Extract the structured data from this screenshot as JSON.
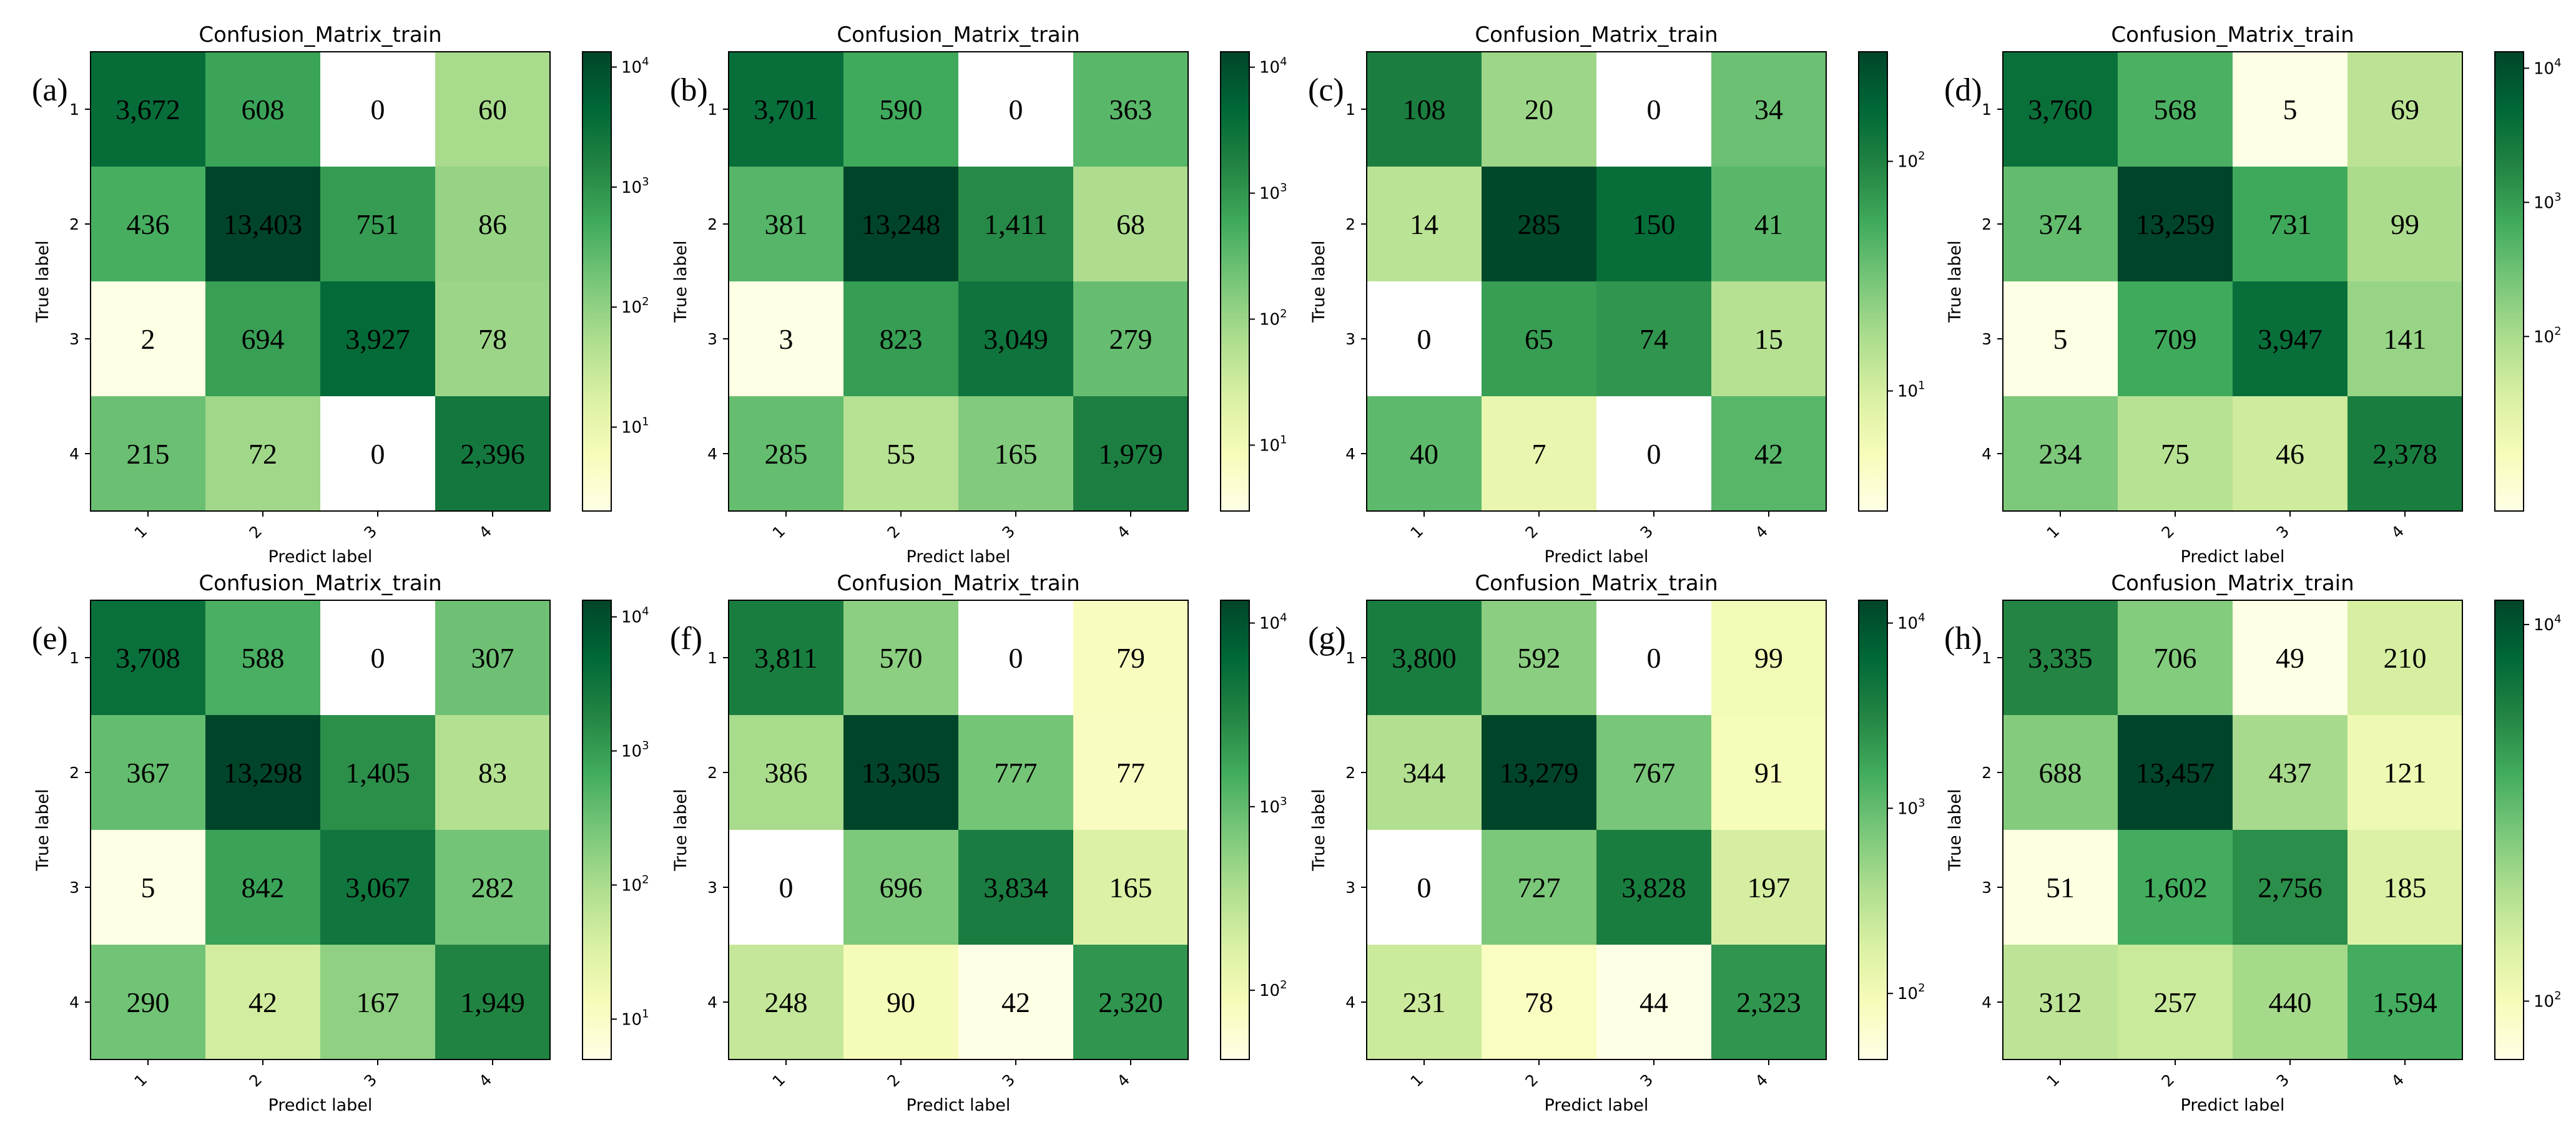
{
  "figure": {
    "colormap_light": "#ffffe5",
    "colormap_dark": "#004529"
  },
  "chart_data": [
    {
      "panel_label": "(a)",
      "type": "heatmap",
      "title": "Confusion_Matrix_train",
      "xlabel": "Predict label",
      "ylabel": "True label",
      "x_categories": [
        "1",
        "2",
        "3",
        "4"
      ],
      "y_categories": [
        "1",
        "2",
        "3",
        "4"
      ],
      "values": [
        [
          3672,
          608,
          0,
          60
        ],
        [
          436,
          13403,
          751,
          86
        ],
        [
          2,
          694,
          3927,
          78
        ],
        [
          215,
          72,
          0,
          2396
        ]
      ],
      "value_labels": [
        [
          "3,672",
          "608",
          "0",
          "60"
        ],
        [
          "436",
          "13,403",
          "751",
          "86"
        ],
        [
          "2",
          "694",
          "3,927",
          "78"
        ],
        [
          "215",
          "72",
          "0",
          "2,396"
        ]
      ],
      "color_scale": "log",
      "color_range": [
        2,
        13403
      ],
      "colorbar_ticks": [
        10,
        100,
        1000,
        10000
      ],
      "colorbar_tick_labels": [
        {
          "base": "10",
          "exp": "1"
        },
        {
          "base": "10",
          "exp": "2"
        },
        {
          "base": "10",
          "exp": "3"
        },
        {
          "base": "10",
          "exp": "4"
        }
      ]
    },
    {
      "panel_label": "(b)",
      "type": "heatmap",
      "title": "Confusion_Matrix_train",
      "xlabel": "Predict label",
      "ylabel": "True label",
      "x_categories": [
        "1",
        "2",
        "3",
        "4"
      ],
      "y_categories": [
        "1",
        "2",
        "3",
        "4"
      ],
      "values": [
        [
          3701,
          590,
          0,
          363
        ],
        [
          381,
          13248,
          1411,
          68
        ],
        [
          3,
          823,
          3049,
          279
        ],
        [
          285,
          55,
          165,
          1979
        ]
      ],
      "value_labels": [
        [
          "3,701",
          "590",
          "0",
          "363"
        ],
        [
          "381",
          "13,248",
          "1,411",
          "68"
        ],
        [
          "3",
          "823",
          "3,049",
          "279"
        ],
        [
          "285",
          "55",
          "165",
          "1,979"
        ]
      ],
      "color_scale": "log",
      "color_range": [
        3,
        13248
      ],
      "colorbar_ticks": [
        10,
        100,
        1000,
        10000
      ],
      "colorbar_tick_labels": [
        {
          "base": "10",
          "exp": "1"
        },
        {
          "base": "10",
          "exp": "2"
        },
        {
          "base": "10",
          "exp": "3"
        },
        {
          "base": "10",
          "exp": "4"
        }
      ]
    },
    {
      "panel_label": "(c)",
      "type": "heatmap",
      "title": "Confusion_Matrix_train",
      "xlabel": "Predict label",
      "ylabel": "True label",
      "x_categories": [
        "1",
        "2",
        "3",
        "4"
      ],
      "y_categories": [
        "1",
        "2",
        "3",
        "4"
      ],
      "values": [
        [
          108,
          20,
          0,
          34
        ],
        [
          14,
          285,
          150,
          41
        ],
        [
          0,
          65,
          74,
          15
        ],
        [
          40,
          7,
          0,
          42
        ]
      ],
      "value_labels": [
        [
          "108",
          "20",
          "0",
          "34"
        ],
        [
          "14",
          "285",
          "150",
          "41"
        ],
        [
          "0",
          "65",
          "74",
          "15"
        ],
        [
          "40",
          "7",
          "0",
          "42"
        ]
      ],
      "color_scale": "log",
      "color_range": [
        3,
        300
      ],
      "colorbar_ticks": [
        10,
        100
      ],
      "colorbar_tick_labels": [
        {
          "base": "10",
          "exp": "1"
        },
        {
          "base": "10",
          "exp": "2"
        }
      ]
    },
    {
      "panel_label": "(d)",
      "type": "heatmap",
      "title": "Confusion_Matrix_train",
      "xlabel": "Predict label",
      "ylabel": "True label",
      "x_categories": [
        "1",
        "2",
        "3",
        "4"
      ],
      "y_categories": [
        "1",
        "2",
        "3",
        "4"
      ],
      "values": [
        [
          3760,
          568,
          5,
          69
        ],
        [
          374,
          13259,
          731,
          99
        ],
        [
          5,
          709,
          3947,
          141
        ],
        [
          234,
          75,
          46,
          2378
        ]
      ],
      "value_labels": [
        [
          "3,760",
          "568",
          "5",
          "69"
        ],
        [
          "374",
          "13,259",
          "731",
          "99"
        ],
        [
          "5",
          "709",
          "3,947",
          "141"
        ],
        [
          "234",
          "75",
          "46",
          "2,378"
        ]
      ],
      "color_scale": "log",
      "color_range": [
        5,
        13259
      ],
      "colorbar_ticks": [
        100,
        1000,
        10000
      ],
      "colorbar_tick_labels": [
        {
          "base": "10",
          "exp": "2"
        },
        {
          "base": "10",
          "exp": "3"
        },
        {
          "base": "10",
          "exp": "4"
        }
      ]
    },
    {
      "panel_label": "(e)",
      "type": "heatmap",
      "title": "Confusion_Matrix_train",
      "xlabel": "Predict label",
      "ylabel": "True label",
      "x_categories": [
        "1",
        "2",
        "3",
        "4"
      ],
      "y_categories": [
        "1",
        "2",
        "3",
        "4"
      ],
      "values": [
        [
          3708,
          588,
          0,
          307
        ],
        [
          367,
          13298,
          1405,
          83
        ],
        [
          5,
          842,
          3067,
          282
        ],
        [
          290,
          42,
          167,
          1949
        ]
      ],
      "value_labels": [
        [
          "3,708",
          "588",
          "0",
          "307"
        ],
        [
          "367",
          "13,298",
          "1,405",
          "83"
        ],
        [
          "5",
          "842",
          "3,067",
          "282"
        ],
        [
          "290",
          "42",
          "167",
          "1,949"
        ]
      ],
      "color_scale": "log",
      "color_range": [
        5,
        13298
      ],
      "colorbar_ticks": [
        10,
        100,
        1000,
        10000
      ],
      "colorbar_tick_labels": [
        {
          "base": "10",
          "exp": "1"
        },
        {
          "base": "10",
          "exp": "2"
        },
        {
          "base": "10",
          "exp": "3"
        },
        {
          "base": "10",
          "exp": "4"
        }
      ]
    },
    {
      "panel_label": "(f)",
      "type": "heatmap",
      "title": "Confusion_Matrix_train",
      "xlabel": "Predict label",
      "ylabel": "True label",
      "x_categories": [
        "1",
        "2",
        "3",
        "4"
      ],
      "y_categories": [
        "1",
        "2",
        "3",
        "4"
      ],
      "values": [
        [
          3811,
          570,
          0,
          79
        ],
        [
          386,
          13305,
          777,
          77
        ],
        [
          0,
          696,
          3834,
          165
        ],
        [
          248,
          90,
          42,
          2320
        ]
      ],
      "value_labels": [
        [
          "3,811",
          "570",
          "0",
          "79"
        ],
        [
          "386",
          "13,305",
          "777",
          "77"
        ],
        [
          "0",
          "696",
          "3,834",
          "165"
        ],
        [
          "248",
          "90",
          "42",
          "2,320"
        ]
      ],
      "color_scale": "log",
      "color_range": [
        42,
        13305
      ],
      "colorbar_ticks": [
        100,
        1000,
        10000
      ],
      "colorbar_tick_labels": [
        {
          "base": "10",
          "exp": "2"
        },
        {
          "base": "10",
          "exp": "3"
        },
        {
          "base": "10",
          "exp": "4"
        }
      ]
    },
    {
      "panel_label": "(g)",
      "type": "heatmap",
      "title": "Confusion_Matrix_train",
      "xlabel": "Predict label",
      "ylabel": "True label",
      "x_categories": [
        "1",
        "2",
        "3",
        "4"
      ],
      "y_categories": [
        "1",
        "2",
        "3",
        "4"
      ],
      "values": [
        [
          3800,
          592,
          0,
          99
        ],
        [
          344,
          13279,
          767,
          91
        ],
        [
          0,
          727,
          3828,
          197
        ],
        [
          231,
          78,
          44,
          2323
        ]
      ],
      "value_labels": [
        [
          "3,800",
          "592",
          "0",
          "99"
        ],
        [
          "344",
          "13,279",
          "767",
          "91"
        ],
        [
          "0",
          "727",
          "3,828",
          "197"
        ],
        [
          "231",
          "78",
          "44",
          "2,323"
        ]
      ],
      "color_scale": "log",
      "color_range": [
        44,
        13279
      ],
      "colorbar_ticks": [
        100,
        1000,
        10000
      ],
      "colorbar_tick_labels": [
        {
          "base": "10",
          "exp": "2"
        },
        {
          "base": "10",
          "exp": "3"
        },
        {
          "base": "10",
          "exp": "4"
        }
      ]
    },
    {
      "panel_label": "(h)",
      "type": "heatmap",
      "title": "Confusion_Matrix_train",
      "xlabel": "Predict label",
      "ylabel": "True label",
      "x_categories": [
        "1",
        "2",
        "3",
        "4"
      ],
      "y_categories": [
        "1",
        "2",
        "3",
        "4"
      ],
      "values": [
        [
          3335,
          706,
          49,
          210
        ],
        [
          688,
          13457,
          437,
          121
        ],
        [
          51,
          1602,
          2756,
          185
        ],
        [
          312,
          257,
          440,
          1594
        ]
      ],
      "value_labels": [
        [
          "3,335",
          "706",
          "49",
          "210"
        ],
        [
          "688",
          "13,457",
          "437",
          "121"
        ],
        [
          "51",
          "1,602",
          "2,756",
          "185"
        ],
        [
          "312",
          "257",
          "440",
          "1,594"
        ]
      ],
      "color_scale": "log",
      "color_range": [
        49,
        13457
      ],
      "colorbar_ticks": [
        100,
        10000
      ],
      "colorbar_tick_labels": [
        {
          "base": "10",
          "exp": "2"
        },
        {
          "base": "10",
          "exp": "4"
        }
      ]
    }
  ]
}
